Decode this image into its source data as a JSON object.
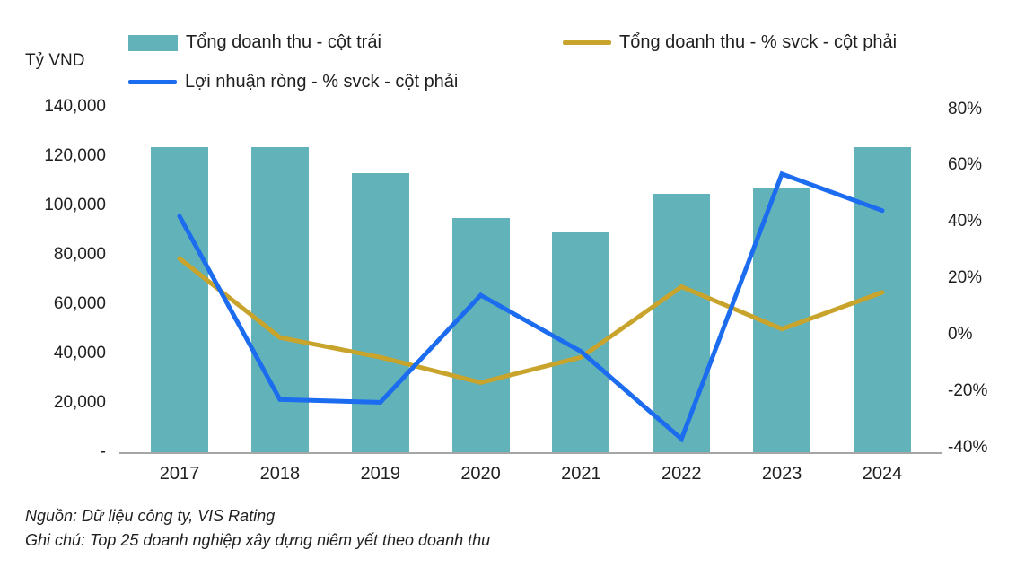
{
  "chart": {
    "unit_label": "Tỷ VND"
  },
  "legend": {
    "items": [
      {
        "label": "Tổng doanh thu - cột trái",
        "swatch": "bar",
        "color": "#61b2b9"
      },
      {
        "label": "Tổng doanh thu - % svck - cột phải",
        "swatch": "line",
        "color": "#c9a42c"
      },
      {
        "label": "Lợi nhuận ròng - % svck - cột phải",
        "swatch": "line",
        "color": "#1c6cf0"
      }
    ]
  },
  "notes": {
    "source": "Nguồn: Dữ liệu công ty, VIS Rating",
    "note": "Ghi chú: Top 25 doanh nghiệp xây dựng niêm yết theo doanh thu"
  },
  "chart_data": {
    "type": "bar+line combo",
    "categories": [
      "2017",
      "2018",
      "2019",
      "2020",
      "2021",
      "2022",
      "2023",
      "2024"
    ],
    "series": [
      {
        "name": "Tổng doanh thu - cột trái",
        "type": "bar",
        "axis": "left",
        "unit": "tỷ VND",
        "color": "#61b2b9",
        "values": [
          123600,
          123600,
          113200,
          94900,
          89100,
          104700,
          107200,
          123500
        ]
      },
      {
        "name": "Tổng doanh thu - % svck - cột phải",
        "type": "line",
        "axis": "right",
        "unit": "%",
        "color": "#c9a42c",
        "values": [
          27,
          -1,
          -8,
          -17,
          -8,
          17,
          2,
          15
        ]
      },
      {
        "name": "Lợi nhuận ròng - % svck - cột phải",
        "type": "line",
        "axis": "right",
        "unit": "%",
        "color": "#1c6cf0",
        "values": [
          42,
          -23,
          -24,
          14,
          -6,
          -37,
          57,
          44
        ]
      }
    ],
    "left_axis": {
      "unit_label": "Tỷ VND",
      "ticks": [
        "140,000",
        "120,000",
        "100,000",
        "80,000",
        "60,000",
        "40,000",
        "20,000",
        "-"
      ],
      "tick_values": [
        140000,
        120000,
        100000,
        80000,
        60000,
        40000,
        20000,
        0
      ],
      "range": [
        0,
        140000
      ]
    },
    "right_axis": {
      "ticks": [
        "80%",
        "60%",
        "40%",
        "20%",
        "0%",
        "-20%",
        "-40%"
      ],
      "tick_values": [
        80,
        60,
        40,
        20,
        0,
        -20,
        -40
      ],
      "range": [
        -40,
        80
      ]
    },
    "grid": false,
    "legend_position": "top"
  }
}
